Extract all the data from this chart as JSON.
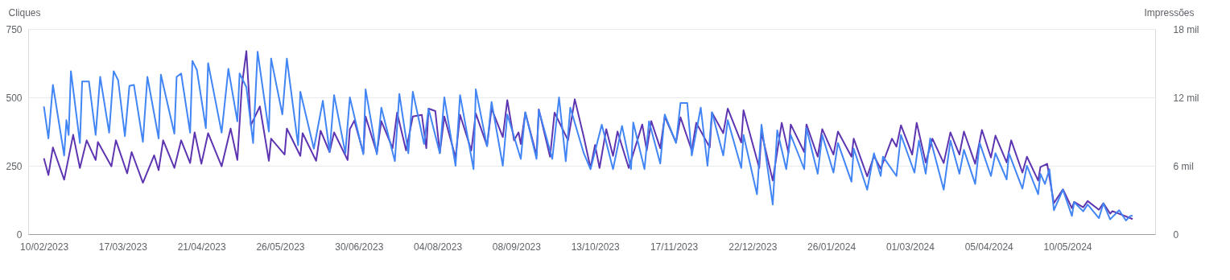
{
  "chart_data": {
    "type": "line",
    "ylabel": "Cliques",
    "y2label": "Impressões",
    "grid": "y",
    "marker": "none",
    "line_style": "solid",
    "xlim": [
      "2023-02-03",
      "2024-06-18"
    ],
    "xticks": [
      {
        "value": "2023-02-10",
        "label": "10/02/2023"
      },
      {
        "value": "2023-03-17",
        "label": "17/03/2023"
      },
      {
        "value": "2023-04-21",
        "label": "21/04/2023"
      },
      {
        "value": "2023-05-26",
        "label": "26/05/2023"
      },
      {
        "value": "2023-06-30",
        "label": "30/06/2023"
      },
      {
        "value": "2023-08-04",
        "label": "04/08/2023"
      },
      {
        "value": "2023-09-08",
        "label": "08/09/2023"
      },
      {
        "value": "2023-10-13",
        "label": "13/10/2023"
      },
      {
        "value": "2023-11-17",
        "label": "17/11/2023"
      },
      {
        "value": "2023-12-22",
        "label": "22/12/2023"
      },
      {
        "value": "2024-01-26",
        "label": "26/01/2024"
      },
      {
        "value": "2024-03-01",
        "label": "01/03/2024"
      },
      {
        "value": "2024-04-05",
        "label": "05/04/2024"
      },
      {
        "value": "2024-05-10",
        "label": "10/05/2024"
      }
    ],
    "ylim": [
      0,
      750
    ],
    "yticks": [
      0,
      250,
      500,
      750
    ],
    "y2lim": [
      0,
      18
    ],
    "y2ticks": [
      0,
      {
        "value": 6,
        "label": "6 mil"
      },
      {
        "value": 12,
        "label": "12 mil"
      },
      {
        "value": 18,
        "label": "18 mil"
      }
    ],
    "series": [
      {
        "color": "#5e35b1",
        "x": [
          "2023-02-10",
          "2023-02-12",
          "2023-02-14",
          "2023-02-19",
          "2023-02-23",
          "2023-02-26",
          "2023-03-01",
          "2023-03-05",
          "2023-03-06",
          "2023-03-12",
          "2023-03-14",
          "2023-03-19",
          "2023-03-21",
          "2023-03-26",
          "2023-03-31",
          "2023-04-02",
          "2023-04-04",
          "2023-04-09",
          "2023-04-12",
          "2023-04-16",
          "2023-04-18",
          "2023-04-21",
          "2023-04-24",
          "2023-04-30",
          "2023-05-04",
          "2023-05-07",
          "2023-05-09",
          "2023-05-11",
          "2023-05-13",
          "2023-05-17",
          "2023-05-21",
          "2023-05-22",
          "2023-05-28",
          "2023-05-29",
          "2023-06-04",
          "2023-06-05",
          "2023-06-11",
          "2023-06-13",
          "2023-06-17",
          "2023-06-19",
          "2023-06-25",
          "2023-06-26",
          "2023-06-28",
          "2023-07-02",
          "2023-07-03",
          "2023-07-08",
          "2023-07-10",
          "2023-07-15",
          "2023-07-17",
          "2023-07-21",
          "2023-07-24",
          "2023-07-28",
          "2023-07-30",
          "2023-07-31",
          "2023-08-03",
          "2023-08-05",
          "2023-08-07",
          "2023-08-12",
          "2023-08-14",
          "2023-08-19",
          "2023-08-21",
          "2023-08-26",
          "2023-08-28",
          "2023-09-02",
          "2023-09-04",
          "2023-09-07",
          "2023-09-09",
          "2023-09-10",
          "2023-09-12",
          "2023-09-17",
          "2023-09-18",
          "2023-09-23",
          "2023-09-25",
          "2023-10-01",
          "2023-10-04",
          "2023-10-08",
          "2023-10-11",
          "2023-10-13",
          "2023-10-15",
          "2023-10-18",
          "2023-10-21",
          "2023-10-23",
          "2023-10-28",
          "2023-11-03",
          "2023-11-05",
          "2023-11-07",
          "2023-11-11",
          "2023-11-13",
          "2023-11-18",
          "2023-11-20",
          "2023-11-25",
          "2023-11-27",
          "2023-12-03",
          "2023-12-04",
          "2023-12-09",
          "2023-12-11",
          "2023-12-17",
          "2023-12-18",
          "2023-12-25",
          "2023-12-26",
          "2023-12-31",
          "2024-01-04",
          "2024-01-07",
          "2024-01-08",
          "2024-01-14",
          "2024-01-15",
          "2024-01-20",
          "2024-01-22",
          "2024-01-27",
          "2024-01-29",
          "2024-02-04",
          "2024-02-05",
          "2024-02-11",
          "2024-02-14",
          "2024-02-17",
          "2024-02-22",
          "2024-02-24",
          "2024-02-26",
          "2024-03-02",
          "2024-03-04",
          "2024-03-08",
          "2024-03-11",
          "2024-03-16",
          "2024-03-19",
          "2024-03-23",
          "2024-03-25",
          "2024-03-30",
          "2024-04-02",
          "2024-04-06",
          "2024-04-08",
          "2024-04-13",
          "2024-04-15",
          "2024-04-20",
          "2024-04-22",
          "2024-04-27",
          "2024-04-28",
          "2024-05-01",
          "2024-05-04",
          "2024-05-08",
          "2024-05-12",
          "2024-05-13",
          "2024-05-17",
          "2024-05-19",
          "2024-05-24",
          "2024-05-26",
          "2024-05-29",
          "2024-05-30",
          "2024-06-08"
        ],
        "values": [
          277,
          216,
          317,
          199,
          363,
          242,
          343,
          271,
          337,
          248,
          343,
          222,
          300,
          188,
          288,
          234,
          343,
          242,
          343,
          260,
          372,
          257,
          369,
          248,
          386,
          271,
          542,
          669,
          398,
          467,
          268,
          349,
          291,
          386,
          286,
          369,
          268,
          378,
          300,
          372,
          271,
          384,
          415,
          297,
          430,
          297,
          413,
          314,
          444,
          306,
          430,
          436,
          314,
          459,
          450,
          297,
          430,
          280,
          436,
          306,
          441,
          323,
          459,
          355,
          490,
          343,
          372,
          329,
          444,
          288,
          456,
          283,
          444,
          343,
          493,
          355,
          242,
          326,
          242,
          384,
          286,
          375,
          242,
          401,
          306,
          413,
          314,
          430,
          335,
          427,
          306,
          407,
          317,
          444,
          369,
          459,
          335,
          453,
          242,
          372,
          196,
          407,
          297,
          401,
          300,
          401,
          283,
          384,
          291,
          375,
          283,
          349,
          211,
          286,
          239,
          349,
          320,
          398,
          291,
          407,
          262,
          349,
          260,
          372,
          291,
          375,
          257,
          381,
          280,
          360,
          262,
          343,
          225,
          283,
          196,
          245,
          257,
          113,
          164,
          95,
          118,
          98,
          121,
          89,
          113,
          75,
          84,
          55
        ]
      },
      {
        "color": "#4285f4",
        "axis": "y2",
        "x": [
          "2023-02-10",
          "2023-02-12",
          "2023-02-14",
          "2023-02-19",
          "2023-02-20",
          "2023-02-21",
          "2023-02-22",
          "2023-02-26",
          "2023-02-27",
          "2023-03-02",
          "2023-03-05",
          "2023-03-07",
          "2023-03-11",
          "2023-03-13",
          "2023-03-15",
          "2023-03-18",
          "2023-03-20",
          "2023-03-22",
          "2023-03-26",
          "2023-03-28",
          "2023-04-02",
          "2023-04-03",
          "2023-04-09",
          "2023-04-10",
          "2023-04-12",
          "2023-04-16",
          "2023-04-17",
          "2023-04-19",
          "2023-04-23",
          "2023-04-24",
          "2023-04-30",
          "2023-05-03",
          "2023-05-07",
          "2023-05-08",
          "2023-05-11",
          "2023-05-14",
          "2023-05-16",
          "2023-05-21",
          "2023-05-22",
          "2023-05-27",
          "2023-05-29",
          "2023-06-03",
          "2023-06-04",
          "2023-06-10",
          "2023-06-14",
          "2023-06-17",
          "2023-06-19",
          "2023-06-24",
          "2023-06-26",
          "2023-07-02",
          "2023-07-03",
          "2023-07-08",
          "2023-07-10",
          "2023-07-16",
          "2023-07-18",
          "2023-07-22",
          "2023-07-24",
          "2023-07-29",
          "2023-07-31",
          "2023-08-05",
          "2023-08-07",
          "2023-08-12",
          "2023-08-14",
          "2023-08-20",
          "2023-08-21",
          "2023-08-26",
          "2023-08-28",
          "2023-09-02",
          "2023-09-04",
          "2023-09-10",
          "2023-09-12",
          "2023-09-17",
          "2023-09-18",
          "2023-09-24",
          "2023-09-27",
          "2023-09-30",
          "2023-10-02",
          "2023-10-08",
          "2023-10-11",
          "2023-10-16",
          "2023-10-21",
          "2023-10-25",
          "2023-10-29",
          "2023-10-30",
          "2023-11-04",
          "2023-11-06",
          "2023-11-11",
          "2023-11-13",
          "2023-11-18",
          "2023-11-20",
          "2023-11-23",
          "2023-11-25",
          "2023-11-29",
          "2023-12-02",
          "2023-12-04",
          "2023-12-09",
          "2023-12-11",
          "2023-12-17",
          "2023-12-18",
          "2023-12-24",
          "2023-12-26",
          "2023-12-31",
          "2024-01-02",
          "2024-01-06",
          "2024-01-08",
          "2024-01-14",
          "2024-01-15",
          "2024-01-20",
          "2024-01-22",
          "2024-01-27",
          "2024-01-29",
          "2024-02-04",
          "2024-02-05",
          "2024-02-11",
          "2024-02-14",
          "2024-02-17",
          "2024-02-18",
          "2024-02-24",
          "2024-02-26",
          "2024-03-03",
          "2024-03-05",
          "2024-03-08",
          "2024-03-10",
          "2024-03-16",
          "2024-03-19",
          "2024-03-23",
          "2024-03-25",
          "2024-03-30",
          "2024-04-01",
          "2024-04-06",
          "2024-04-08",
          "2024-04-13",
          "2024-04-14",
          "2024-04-20",
          "2024-04-22",
          "2024-04-27",
          "2024-04-28",
          "2024-04-30",
          "2024-05-02",
          "2024-05-04",
          "2024-05-08",
          "2024-05-12",
          "2024-05-13",
          "2024-05-17",
          "2024-05-19",
          "2024-05-24",
          "2024-05-26",
          "2024-05-29",
          "2024-06-02",
          "2024-06-05",
          "2024-06-07",
          "2024-06-08"
        ],
        "values": [
          11.2,
          8.4,
          13.1,
          6.9,
          10.0,
          8.7,
          14.3,
          8.0,
          13.4,
          13.4,
          8.7,
          13.8,
          8.9,
          14.3,
          13.5,
          8.6,
          13.0,
          13.1,
          8.1,
          13.8,
          8.4,
          14.0,
          8.8,
          13.8,
          14.1,
          8.9,
          15.2,
          14.4,
          9.3,
          15.0,
          8.9,
          14.5,
          9.9,
          14.1,
          12.9,
          8.0,
          16.0,
          9.0,
          15.4,
          10.5,
          15.4,
          7.8,
          12.5,
          7.5,
          11.7,
          7.2,
          12.2,
          7.1,
          12.0,
          7.0,
          12.7,
          7.0,
          11.1,
          6.4,
          12.3,
          7.1,
          12.5,
          7.9,
          11.0,
          7.1,
          12.0,
          6.0,
          12.2,
          5.7,
          12.7,
          7.7,
          11.6,
          6.0,
          10.5,
          6.6,
          10.7,
          6.6,
          10.9,
          6.6,
          12.0,
          6.4,
          11.1,
          7.1,
          5.7,
          9.6,
          5.7,
          9.5,
          5.7,
          9.8,
          5.7,
          9.9,
          6.2,
          10.5,
          8.0,
          11.5,
          11.5,
          6.9,
          11.1,
          6.0,
          10.7,
          6.9,
          10.0,
          5.8,
          8.7,
          3.5,
          9.6,
          2.6,
          9.1,
          5.7,
          8.7,
          5.7,
          9.3,
          5.3,
          8.7,
          5.4,
          8.0,
          4.6,
          7.5,
          3.9,
          7.1,
          5.1,
          6.8,
          5.1,
          8.7,
          5.4,
          8.2,
          5.3,
          8.4,
          3.9,
          8.2,
          5.3,
          7.4,
          4.4,
          8.0,
          5.1,
          7.1,
          4.8,
          7.1,
          4.0,
          6.0,
          3.5,
          5.3,
          4.4,
          5.7,
          2.1,
          3.9,
          1.6,
          2.8,
          2.0,
          2.6,
          1.4,
          2.7,
          1.3,
          2.1,
          1.2,
          1.6,
          1.6
        ]
      }
    ]
  }
}
